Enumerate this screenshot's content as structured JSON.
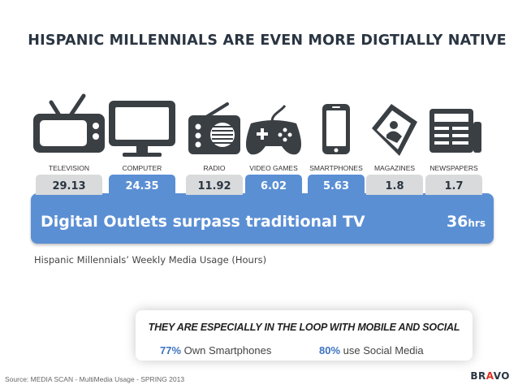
{
  "title": "HISPANIC MILLENNIALS ARE EVEN MORE DIGTIALLY NATIVE",
  "colors": {
    "dark": "#3a3f44",
    "bar_gray": "#d9dadb",
    "bar_blue": "#5b8fd4",
    "panel_blue": "#5b8fd4",
    "text_dark": "#2a3542"
  },
  "chart_data": {
    "type": "table",
    "categories": [
      "TELEVISION",
      "COMPUTER",
      "RADIO",
      "VIDEO GAMES",
      "SMARTPHONES",
      "MAGAZINES",
      "NEWSPAPERS"
    ],
    "values": [
      "29.13",
      "24.35",
      "11.92",
      "6.02",
      "5.63",
      "1.8",
      "1.7"
    ],
    "digital": [
      false,
      true,
      false,
      true,
      true,
      false,
      false
    ],
    "icons": [
      "television-icon",
      "computer-icon",
      "radio-icon",
      "video-games-icon",
      "smartphone-icon",
      "magazine-icon",
      "newspaper-icon"
    ]
  },
  "headline": "Digital Outlets surpass traditional TV",
  "total_value": "36",
  "total_unit": "hrs",
  "caption": "Hispanic Millennials’ Weekly Media Usage (Hours)",
  "callout": {
    "title": "THEY ARE ESPECIALLY IN THE LOOP WITH MOBILE AND SOCIAL",
    "stat1_value": "77%",
    "stat1_label": "Own Smartphones",
    "stat2_value": "80%",
    "stat2_label": "use Social Media"
  },
  "source": "Source: MEDIA SCAN - MultiMedia Usage - SPRING 2013",
  "logo_a": "BR",
  "logo_b": "A",
  "logo_c": "VO"
}
